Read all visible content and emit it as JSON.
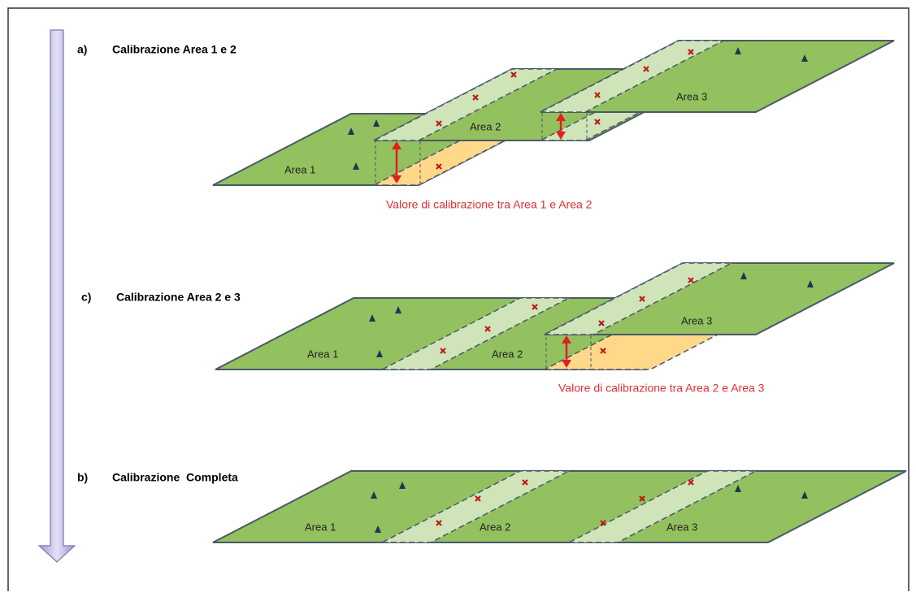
{
  "steps": [
    {
      "marker": "a)",
      "title": "Calibrazione Area 1 e 2",
      "areas": [
        "Area 1",
        "Area 2",
        "Area 3"
      ],
      "note": "Valore di calibrazione tra Area 1 e Area 2"
    },
    {
      "marker": "c)",
      "title": "Calibrazione Area 2 e 3",
      "areas": [
        "Area 1",
        "Area 2",
        "Area 3"
      ],
      "note": "Valore di calibrazione tra Area 2 e Area 3"
    },
    {
      "marker": "b)",
      "title": "Calibrazione  Completa",
      "areas": [
        "Area 1",
        "Area 2",
        "Area 3"
      ]
    }
  ]
}
